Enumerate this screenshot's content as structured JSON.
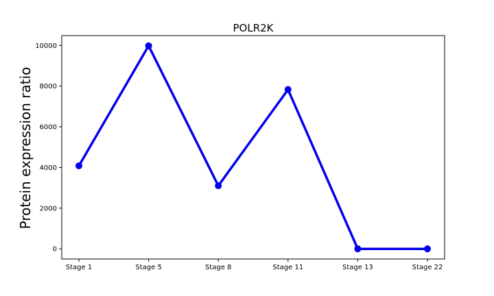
{
  "chart_data": {
    "type": "line",
    "title": "POLR2K",
    "xlabel": "",
    "ylabel": "Protein expression ratio",
    "categories": [
      "Stage 1",
      "Stage 5",
      "Stage 8",
      "Stage 11",
      "Stage 13",
      "Stage 22"
    ],
    "series": [
      {
        "values": [
          4080,
          9980,
          3100,
          7830,
          0,
          0
        ],
        "color": "#0000ee"
      }
    ],
    "ylim": [
      -500,
      10480
    ],
    "yticks": [
      0,
      2000,
      4000,
      6000,
      8000,
      10000
    ],
    "grid": false,
    "legend": "none"
  }
}
